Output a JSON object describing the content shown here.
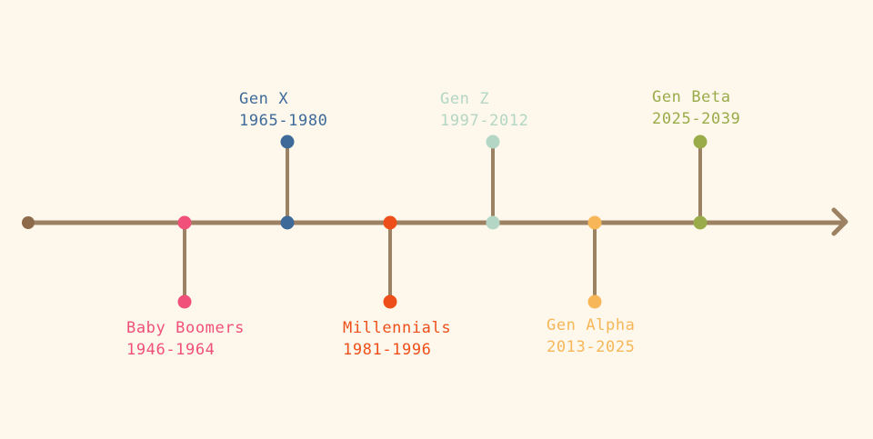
{
  "timeline": {
    "line_color": "#9C8162",
    "start_dot_color": "#8C6A4A",
    "generations": [
      {
        "id": "baby-boomers",
        "name": "Baby Boomers",
        "years": "1946-1964",
        "color": "#F0507A",
        "side": "below"
      },
      {
        "id": "gen-x",
        "name": "Gen X",
        "years": "1965-1980",
        "color": "#3E6A9A",
        "side": "above"
      },
      {
        "id": "millennials",
        "name": "Millennials",
        "years": "1981-1996",
        "color": "#EE4F1A",
        "side": "below"
      },
      {
        "id": "gen-z",
        "name": "Gen Z",
        "years": "1997-2012",
        "color": "#B4D6C4",
        "side": "above"
      },
      {
        "id": "gen-alpha",
        "name": "Gen Alpha",
        "years": "2013-2025",
        "color": "#F7B658",
        "side": "below"
      },
      {
        "id": "gen-beta",
        "name": "Gen Beta",
        "years": "2025-2039",
        "color": "#9AAB4A",
        "side": "above"
      }
    ]
  }
}
